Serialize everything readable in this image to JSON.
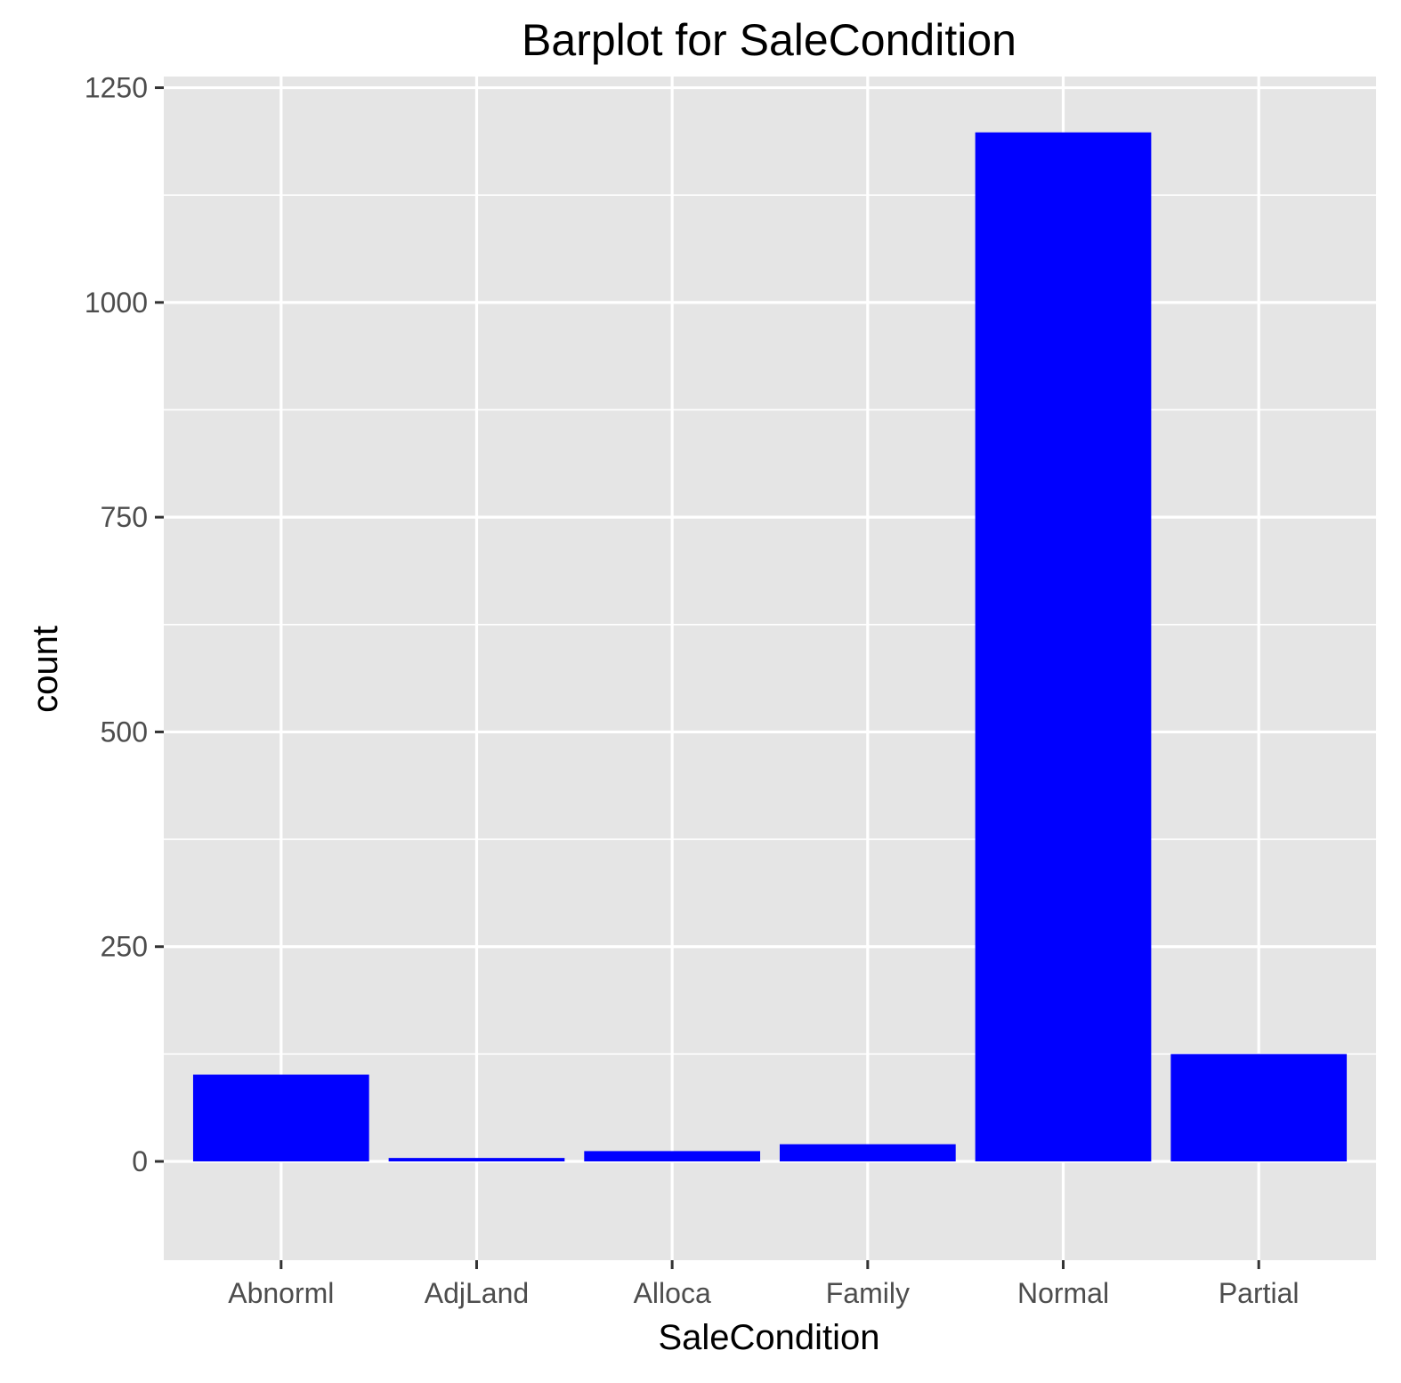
{
  "chart_data": {
    "type": "bar",
    "title": "Barplot for SaleCondition",
    "xlabel": "SaleCondition",
    "ylabel": "count",
    "categories": [
      "Abnorml",
      "AdjLand",
      "Alloca",
      "Family",
      "Normal",
      "Partial"
    ],
    "values": [
      101,
      4,
      12,
      20,
      1198,
      125
    ],
    "ylim": [
      -115,
      1263
    ],
    "yticks": [
      0,
      250,
      500,
      750,
      1000,
      1250
    ],
    "ytick_labels": [
      "0",
      "250",
      "500",
      "750",
      "1000",
      "1250"
    ],
    "grid": true,
    "legend": "none",
    "colors": {
      "bar": "#0000ff",
      "panel": "#e5e5e5",
      "grid": "#ffffff",
      "tick": "#333333"
    }
  }
}
